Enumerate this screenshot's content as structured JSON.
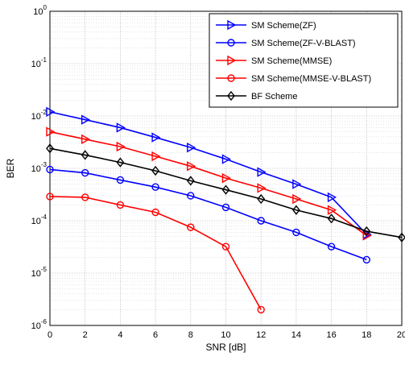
{
  "chart_data": {
    "type": "line",
    "title": "",
    "xlabel": "SNR [dB]",
    "ylabel": "BER",
    "xscale": "linear",
    "yscale": "log",
    "xlim": [
      0,
      20
    ],
    "ylim": [
      1e-06,
      1
    ],
    "xticks": [
      0,
      2,
      4,
      6,
      8,
      10,
      12,
      14,
      16,
      18,
      20
    ],
    "yticks": [
      {
        "value": 1e-06,
        "exp": "-6"
      },
      {
        "value": 1e-05,
        "exp": "-5"
      },
      {
        "value": 0.0001,
        "exp": "-4"
      },
      {
        "value": 0.001,
        "exp": "-3"
      },
      {
        "value": 0.01,
        "exp": "-2"
      },
      {
        "value": 0.1,
        "exp": "-1"
      },
      {
        "value": 1,
        "exp": "0"
      }
    ],
    "ytick_base": "10",
    "grid": true,
    "minor_grid": true,
    "legend_position": "top-right",
    "series": [
      {
        "name": "SM Scheme(ZF)",
        "color": "#0000ff",
        "marker": "triangle-right",
        "x": [
          0,
          2,
          4,
          6,
          8,
          10,
          12,
          14,
          16,
          18
        ],
        "y": [
          0.012,
          0.0085,
          0.006,
          0.0039,
          0.0025,
          0.0015,
          0.00085,
          0.0005,
          0.00028,
          5.5e-05
        ]
      },
      {
        "name": "SM Scheme(ZF-V-BLAST)",
        "color": "#0000ff",
        "marker": "circle",
        "x": [
          0,
          2,
          4,
          6,
          8,
          10,
          12,
          14,
          16,
          18
        ],
        "y": [
          0.00095,
          0.00082,
          0.0006,
          0.00044,
          0.0003,
          0.00018,
          0.0001,
          6e-05,
          3.2e-05,
          1.8e-05
        ]
      },
      {
        "name": "SM Scheme(MMSE)",
        "color": "#ff0000",
        "marker": "triangle-right",
        "x": [
          0,
          2,
          4,
          6,
          8,
          10,
          12,
          14,
          16,
          18
        ],
        "y": [
          0.005,
          0.0036,
          0.0026,
          0.0017,
          0.0011,
          0.00065,
          0.00042,
          0.00026,
          0.00016,
          5.2e-05
        ]
      },
      {
        "name": "SM Scheme(MMSE-V-BLAST)",
        "color": "#ff0000",
        "marker": "circle",
        "x": [
          0,
          2,
          4,
          6,
          8,
          10,
          12
        ],
        "y": [
          0.00029,
          0.00028,
          0.0002,
          0.000145,
          7.5e-05,
          3.2e-05,
          2e-06
        ]
      },
      {
        "name": "BF Scheme",
        "color": "#000000",
        "marker": "diamond",
        "x": [
          0,
          2,
          4,
          6,
          8,
          10,
          12,
          14,
          16,
          18,
          20
        ],
        "y": [
          0.0024,
          0.0018,
          0.0013,
          0.0009,
          0.00058,
          0.00039,
          0.00026,
          0.00016,
          0.00011,
          6.3e-05,
          4.8e-05
        ]
      }
    ]
  }
}
